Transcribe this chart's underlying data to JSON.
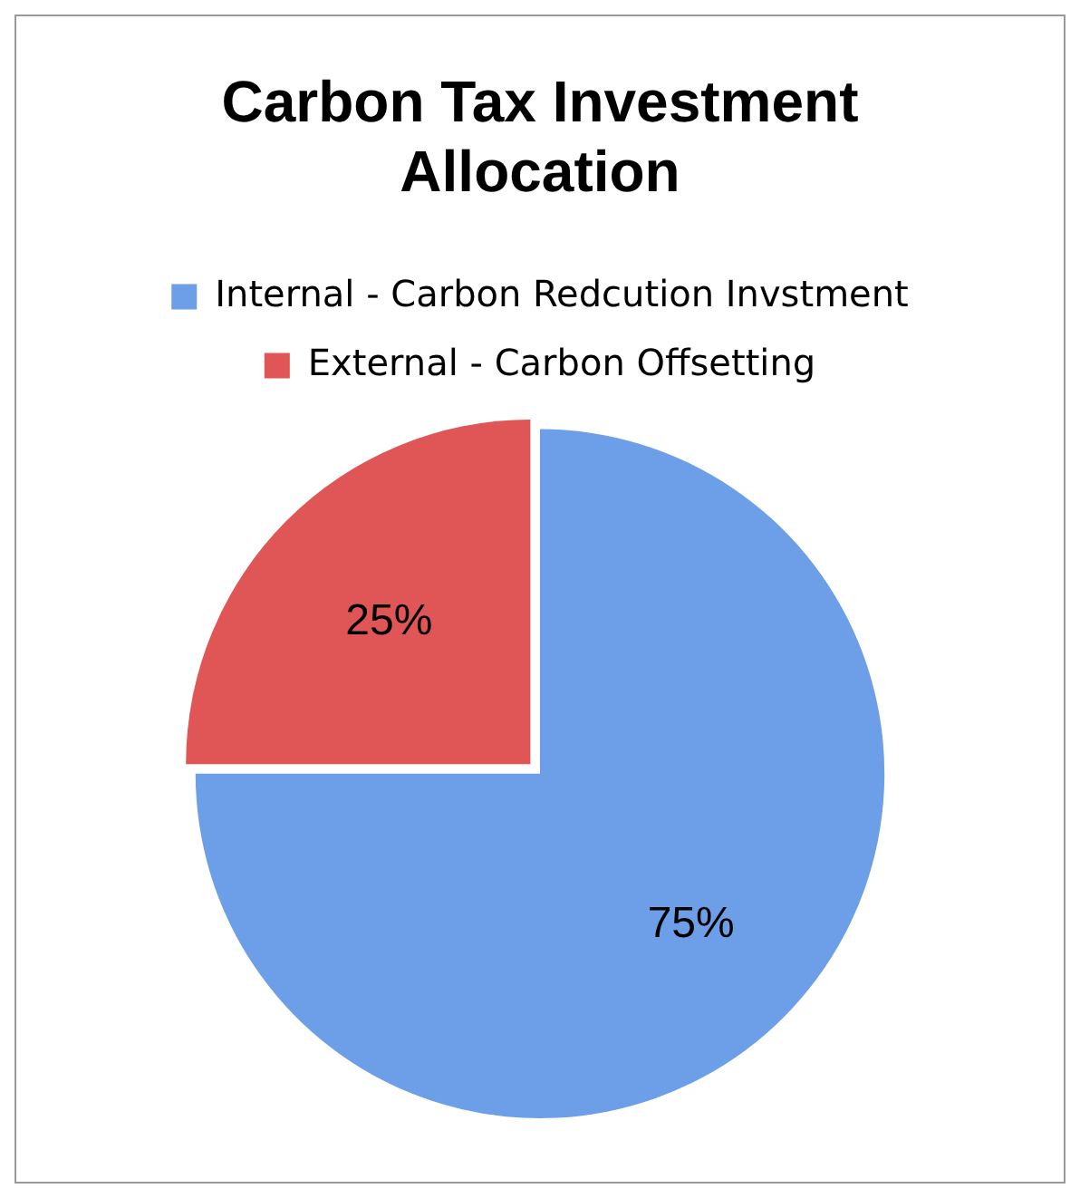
{
  "chart_data": {
    "type": "pie",
    "title": [
      "Carbon Tax Investment",
      "Allocation"
    ],
    "categories": [
      "Internal - Carbon Redcution Invstment",
      "External - Carbon Offsetting"
    ],
    "values": [
      75,
      25
    ],
    "colors": [
      "#6d9ee8",
      "#e05555"
    ],
    "value_labels": [
      "75%",
      "25%"
    ],
    "legend": "top"
  }
}
